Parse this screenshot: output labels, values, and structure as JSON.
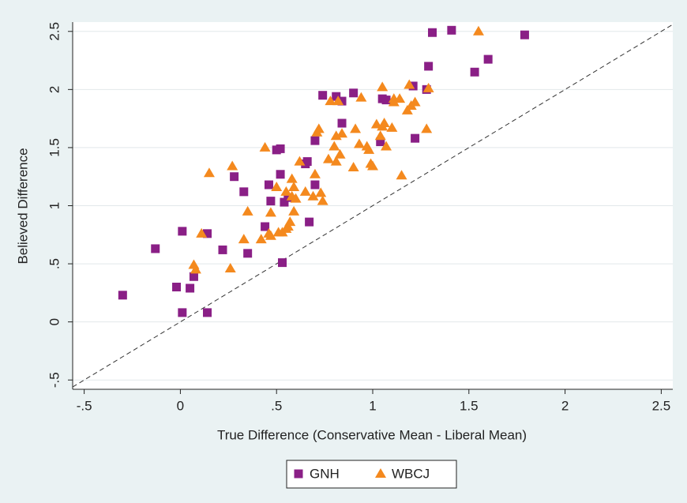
{
  "chart_data": {
    "type": "scatter",
    "x_label": "True Difference (Conservative Mean - Liberal Mean)",
    "y_label": "Believed Difference",
    "xlim": [
      -0.56,
      2.56
    ],
    "ylim": [
      -0.58,
      2.58
    ],
    "xticks": [
      {
        "value": -0.5,
        "label": "-.5"
      },
      0,
      {
        "value": 0.5,
        "label": ".5"
      },
      1,
      1.5,
      2,
      2.5
    ],
    "yticks": [
      {
        "value": -0.5,
        "label": "-.5"
      },
      0,
      {
        "value": 0.5,
        "label": ".5"
      },
      1,
      1.5,
      2,
      2.5
    ],
    "grid": true,
    "legend": "bottom",
    "series": [
      {
        "name": "GNH",
        "color": "#8a1f86",
        "marker": "square",
        "x": [
          -0.3,
          -0.13,
          -0.02,
          0.01,
          0.01,
          0.05,
          0.07,
          0.14,
          0.14,
          0.22,
          0.28,
          0.33,
          0.35,
          0.44,
          0.46,
          0.47,
          0.5,
          0.52,
          0.52,
          0.53,
          0.54,
          0.56,
          0.65,
          0.66,
          0.67,
          0.7,
          0.7,
          0.74,
          0.81,
          0.84,
          0.84,
          0.9,
          1.04,
          1.05,
          1.07,
          1.21,
          1.22,
          1.28,
          1.29,
          1.31,
          1.41,
          1.53,
          1.6,
          1.79
        ],
        "values": [
          0.23,
          0.63,
          0.3,
          0.78,
          0.08,
          0.29,
          0.39,
          0.76,
          0.08,
          0.62,
          1.25,
          1.12,
          0.59,
          0.82,
          1.18,
          1.04,
          1.48,
          1.49,
          1.27,
          0.51,
          1.03,
          1.07,
          1.36,
          1.38,
          0.86,
          1.18,
          1.56,
          1.95,
          1.94,
          1.9,
          1.71,
          1.97,
          1.55,
          1.92,
          1.91,
          2.03,
          1.58,
          2.0,
          2.2,
          2.49,
          2.51,
          2.15,
          2.26,
          2.47
        ]
      },
      {
        "name": "WBCJ",
        "color": "#f4891e",
        "marker": "triangle",
        "x": [
          0.07,
          0.08,
          0.11,
          0.15,
          0.26,
          0.27,
          0.33,
          0.35,
          0.42,
          0.44,
          0.46,
          0.47,
          0.47,
          0.5,
          0.51,
          0.53,
          0.55,
          0.55,
          0.56,
          0.57,
          0.58,
          0.58,
          0.59,
          0.59,
          0.6,
          0.62,
          0.65,
          0.69,
          0.7,
          0.71,
          0.72,
          0.73,
          0.74,
          0.77,
          0.78,
          0.8,
          0.81,
          0.81,
          0.82,
          0.83,
          0.84,
          0.9,
          0.91,
          0.93,
          0.94,
          0.97,
          0.98,
          0.99,
          1.0,
          1.02,
          1.04,
          1.05,
          1.05,
          1.06,
          1.07,
          1.1,
          1.11,
          1.11,
          1.14,
          1.15,
          1.18,
          1.19,
          1.2,
          1.22,
          1.28,
          1.29,
          1.55
        ],
        "values": [
          0.49,
          0.45,
          0.76,
          1.28,
          0.46,
          1.34,
          0.71,
          0.95,
          0.71,
          1.5,
          0.76,
          0.94,
          0.74,
          1.16,
          0.77,
          0.77,
          0.8,
          1.12,
          0.82,
          0.86,
          1.08,
          1.23,
          1.16,
          0.95,
          1.06,
          1.38,
          1.12,
          1.08,
          1.27,
          1.63,
          1.66,
          1.11,
          1.04,
          1.4,
          1.9,
          1.51,
          1.6,
          1.38,
          1.9,
          1.44,
          1.62,
          1.33,
          1.66,
          1.53,
          1.93,
          1.51,
          1.48,
          1.36,
          1.34,
          1.7,
          1.6,
          1.68,
          2.02,
          1.71,
          1.51,
          1.67,
          1.89,
          1.92,
          1.92,
          1.26,
          1.82,
          2.04,
          1.86,
          1.89,
          1.66,
          2.01,
          2.5
        ]
      }
    ]
  }
}
